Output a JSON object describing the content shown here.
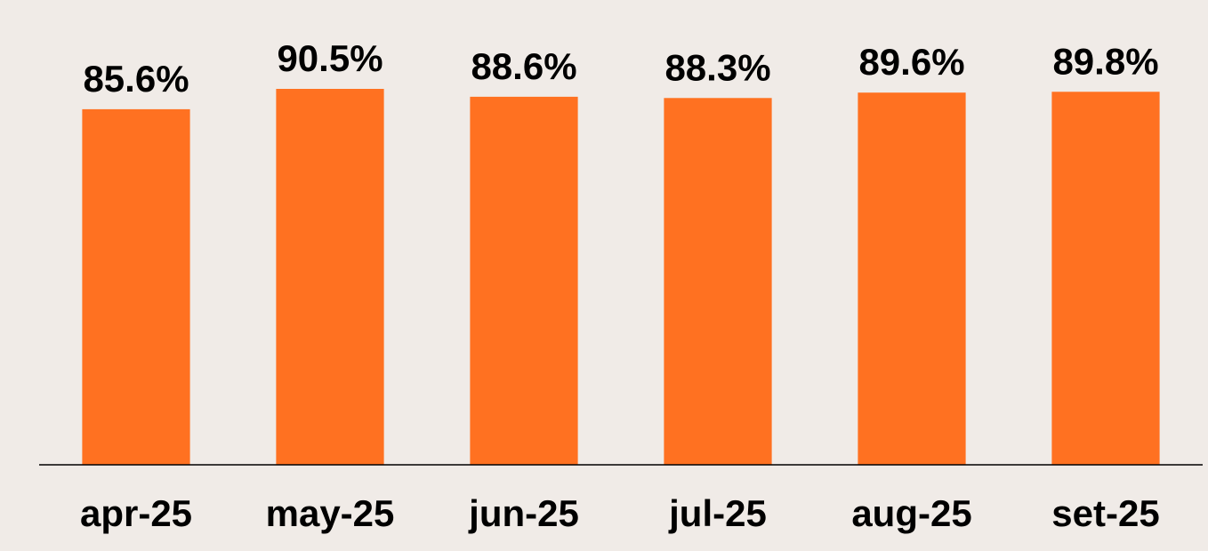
{
  "chart_data": {
    "type": "bar",
    "categories": [
      "apr-25",
      "may-25",
      "jun-25",
      "jul-25",
      "aug-25",
      "set-25"
    ],
    "values": [
      85.6,
      90.5,
      88.6,
      88.3,
      89.6,
      89.8
    ],
    "value_labels": [
      "85.6%",
      "90.5%",
      "88.6%",
      "88.3%",
      "89.6%",
      "89.8%"
    ],
    "color": "#ff7121"
  }
}
